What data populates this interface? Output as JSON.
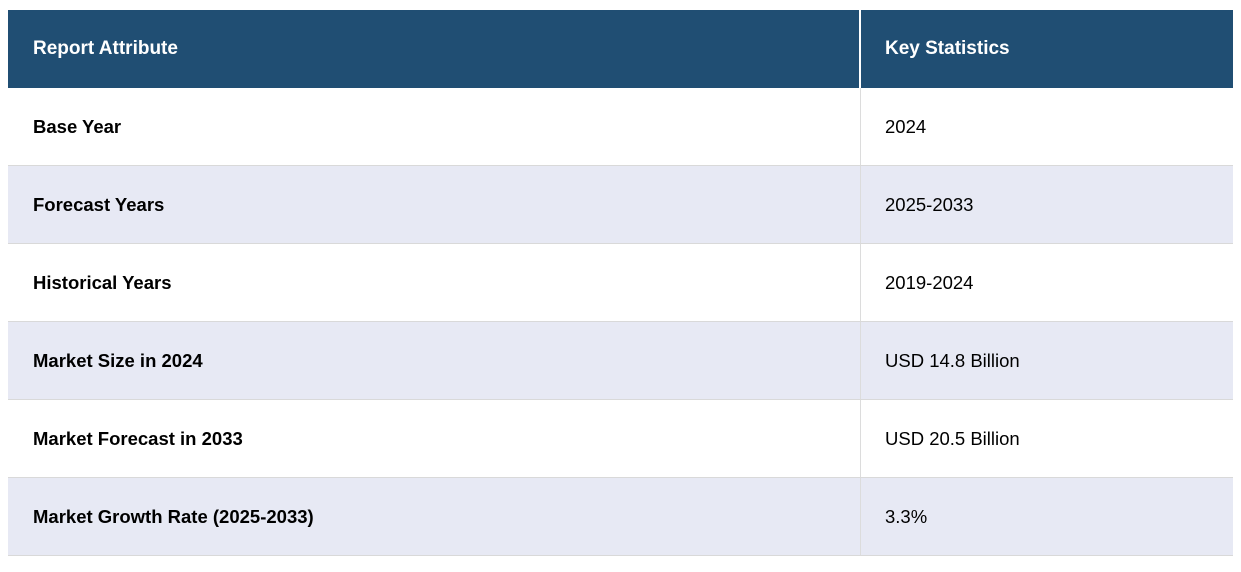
{
  "table": {
    "header": {
      "attribute_label": "Report Attribute",
      "value_label": "Key Statistics"
    },
    "rows": [
      {
        "attribute": "Base Year",
        "value": "2024"
      },
      {
        "attribute": "Forecast Years",
        "value": "2025-2033"
      },
      {
        "attribute": "Historical Years",
        "value": "2019-2024"
      },
      {
        "attribute": "Market Size in 2024",
        "value": "USD 14.8 Billion"
      },
      {
        "attribute": "Market Forecast in 2033",
        "value": "USD 20.5 Billion"
      },
      {
        "attribute": "Market Growth Rate (2025-2033)",
        "value": "3.3%"
      }
    ],
    "colors": {
      "header_bg": "#204E73",
      "header_text": "#FFFFFF",
      "row_bg": "#FFFFFF",
      "row_alt_bg": "#E7E9F4",
      "border": "#D9D9D9"
    }
  },
  "chart_data": {
    "type": "table",
    "title": "",
    "columns": [
      "Report Attribute",
      "Key Statistics"
    ],
    "rows": [
      [
        "Base Year",
        "2024"
      ],
      [
        "Forecast Years",
        "2025-2033"
      ],
      [
        "Historical Years",
        "2019-2024"
      ],
      [
        "Market Size in 2024",
        "USD 14.8 Billion"
      ],
      [
        "Market Forecast in 2033",
        "USD 20.5 Billion"
      ],
      [
        "Market Growth Rate (2025-2033)",
        "3.3%"
      ]
    ],
    "notes": {
      "market_size_2024_usd_billion": 14.8,
      "market_forecast_2033_usd_billion": 20.5,
      "cagr_2025_2033_percent": 3.3
    }
  }
}
